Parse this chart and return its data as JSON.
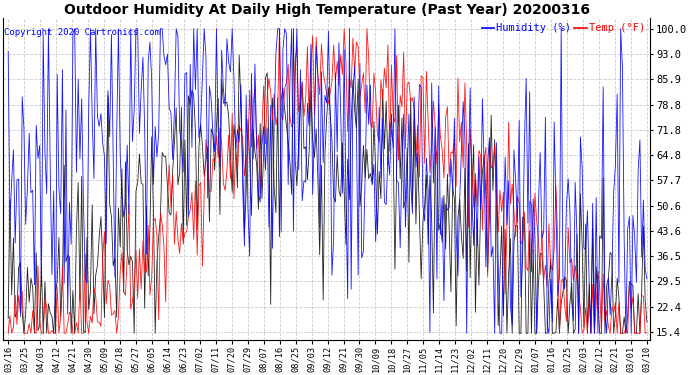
{
  "title": "Outdoor Humidity At Daily High Temperature (Past Year) 20200316",
  "copyright": "Copyright 2020 Cartronics.com",
  "legend_humidity": "Humidity (%)",
  "legend_temp": "Temp (°F)",
  "humidity_color": "blue",
  "temp_color": "red",
  "black_color": "black",
  "background_color": "#ffffff",
  "grid_color": "#c0c0c0",
  "yticks": [
    15.4,
    22.4,
    29.5,
    36.5,
    43.6,
    50.6,
    57.7,
    64.8,
    71.8,
    78.8,
    85.9,
    93.0,
    100.0
  ],
  "ylim": [
    13.0,
    103.0
  ],
  "xtick_labels": [
    "03/16",
    "03/25",
    "04/03",
    "04/12",
    "04/21",
    "04/30",
    "05/09",
    "05/18",
    "05/27",
    "06/05",
    "06/14",
    "06/23",
    "07/02",
    "07/11",
    "07/20",
    "07/29",
    "08/07",
    "08/16",
    "08/25",
    "09/03",
    "09/12",
    "09/21",
    "09/30",
    "10/09",
    "10/18",
    "10/27",
    "11/05",
    "11/14",
    "11/23",
    "12/02",
    "12/11",
    "12/20",
    "12/29",
    "01/07",
    "01/16",
    "01/25",
    "02/03",
    "02/12",
    "02/21",
    "03/01",
    "03/10"
  ],
  "num_points": 366
}
